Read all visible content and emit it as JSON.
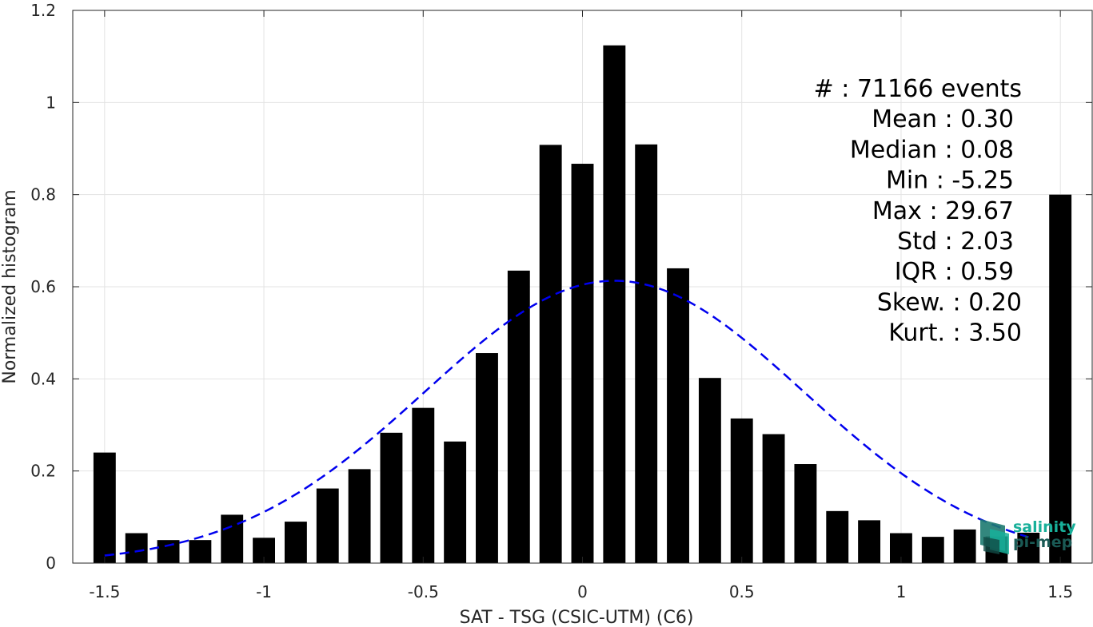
{
  "chart_data": {
    "type": "bar",
    "xlabel": "SAT - TSG (CSIC-UTM) (C6)",
    "ylabel": "Normalized histogram",
    "xlim": [
      -1.6,
      1.6
    ],
    "ylim": [
      0,
      1.2
    ],
    "xticks": [
      -1.5,
      -1,
      -0.5,
      0,
      0.5,
      1,
      1.5
    ],
    "xtick_labels": [
      "-1.5",
      "-1",
      "-0.5",
      "0",
      "0.5",
      "1",
      "1.5"
    ],
    "yticks": [
      0,
      0.2,
      0.4,
      0.6,
      0.8,
      1,
      1.2
    ],
    "ytick_labels": [
      "0",
      "0.2",
      "0.4",
      "0.6",
      "0.8",
      "1",
      "1.2"
    ],
    "grid": true,
    "bar_width": 0.07,
    "bars": {
      "x": [
        -1.5,
        -1.4,
        -1.3,
        -1.2,
        -1.1,
        -1.0,
        -0.9,
        -0.8,
        -0.7,
        -0.6,
        -0.5,
        -0.4,
        -0.3,
        -0.2,
        -0.1,
        0.0,
        0.1,
        0.2,
        0.3,
        0.4,
        0.5,
        0.6,
        0.7,
        0.8,
        0.9,
        1.0,
        1.1,
        1.2,
        1.3,
        1.4,
        1.5
      ],
      "values": [
        0.24,
        0.065,
        0.05,
        0.05,
        0.105,
        0.055,
        0.09,
        0.162,
        0.204,
        0.283,
        0.337,
        0.264,
        0.456,
        0.635,
        0.908,
        0.867,
        1.124,
        0.909,
        0.64,
        0.402,
        0.314,
        0.28,
        0.215,
        0.113,
        0.093,
        0.065,
        0.057,
        0.073,
        0.058,
        0.066,
        0.8
      ],
      "color": "#000000"
    },
    "fit_curve": {
      "type": "gaussian",
      "line_style": "dashed",
      "color": "#0000ee",
      "mean": 0.1,
      "peak": 0.613,
      "sigma": 0.595,
      "x_range": [
        -1.5,
        1.4
      ]
    },
    "stats": [
      "#  : 71166 events",
      "Mean : 0.30",
      "Median : 0.08",
      "Min : -5.25",
      "Max : 29.67",
      "Std : 2.03",
      "IQR : 0.59",
      "Skew. : 0.20",
      "Kurt. : 3.50"
    ]
  },
  "logo": {
    "line1": "salinity",
    "line2": "pi-mep",
    "colors": {
      "dark": "#1a5a55",
      "light": "#18b09a",
      "mid": "#2e8f85"
    }
  }
}
